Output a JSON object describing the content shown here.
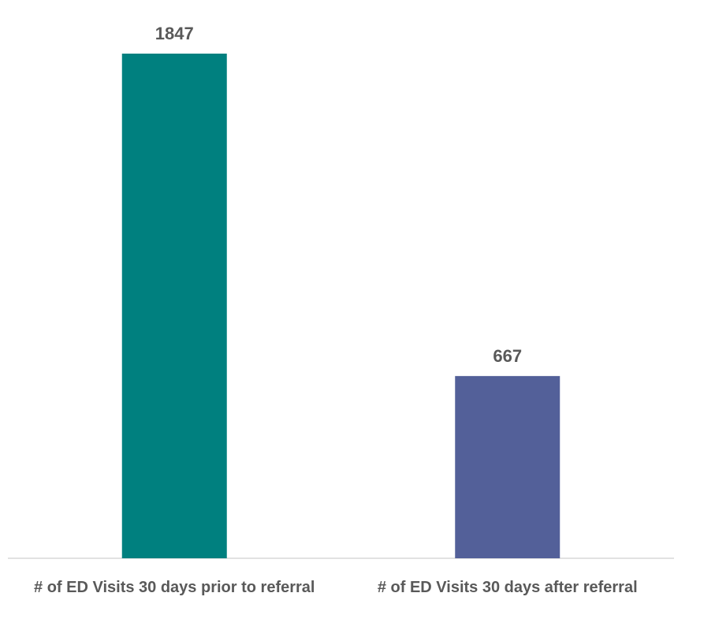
{
  "chart_data": {
    "type": "bar",
    "categories": [
      "# of ED Visits 30 days prior to referral",
      "# of ED Visits 30 days after referral"
    ],
    "values": [
      1847,
      667
    ],
    "colors": [
      "#00807f",
      "#536099"
    ]
  }
}
